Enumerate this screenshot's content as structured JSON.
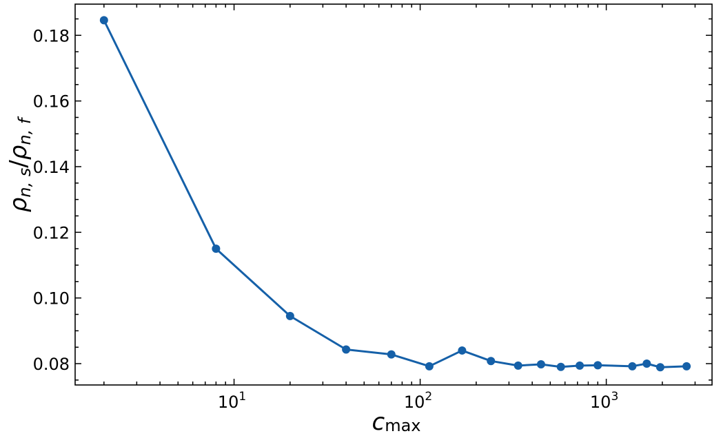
{
  "chart_data": {
    "type": "line",
    "xlabel": {
      "base": "c",
      "sub": "max"
    },
    "ylabel": {
      "num_base": "ρ",
      "num_sub": "n, s",
      "slash": "/",
      "den_base": "ρ",
      "den_sub": "n, f"
    },
    "xscale": "log",
    "xlim": [
      1.4,
      3700
    ],
    "ylim": [
      0.0735,
      0.1895
    ],
    "x_ticks": [
      {
        "value": 10,
        "base": "10",
        "exp": "1"
      },
      {
        "value": 100,
        "base": "10",
        "exp": "2"
      },
      {
        "value": 1000,
        "base": "10",
        "exp": "3"
      }
    ],
    "y_ticks": [
      {
        "value": 0.08,
        "label": "0.08"
      },
      {
        "value": 0.1,
        "label": "0.10"
      },
      {
        "value": 0.12,
        "label": "0.12"
      },
      {
        "value": 0.14,
        "label": "0.14"
      },
      {
        "value": 0.16,
        "label": "0.16"
      },
      {
        "value": 0.18,
        "label": "0.18"
      }
    ],
    "grid": false,
    "ticks_direction": "in, all four sides",
    "series": [
      {
        "color": "#1560a8",
        "marker": "circle",
        "x": [
          2,
          8,
          20,
          40,
          70,
          112,
          168,
          240,
          336,
          446,
          570,
          720,
          900,
          1380,
          1650,
          1950,
          2700
        ],
        "y": [
          0.1846,
          0.115,
          0.0945,
          0.0843,
          0.0828,
          0.0792,
          0.084,
          0.0808,
          0.0794,
          0.0798,
          0.079,
          0.0794,
          0.0795,
          0.0792,
          0.08,
          0.0789,
          0.0792
        ]
      }
    ]
  }
}
